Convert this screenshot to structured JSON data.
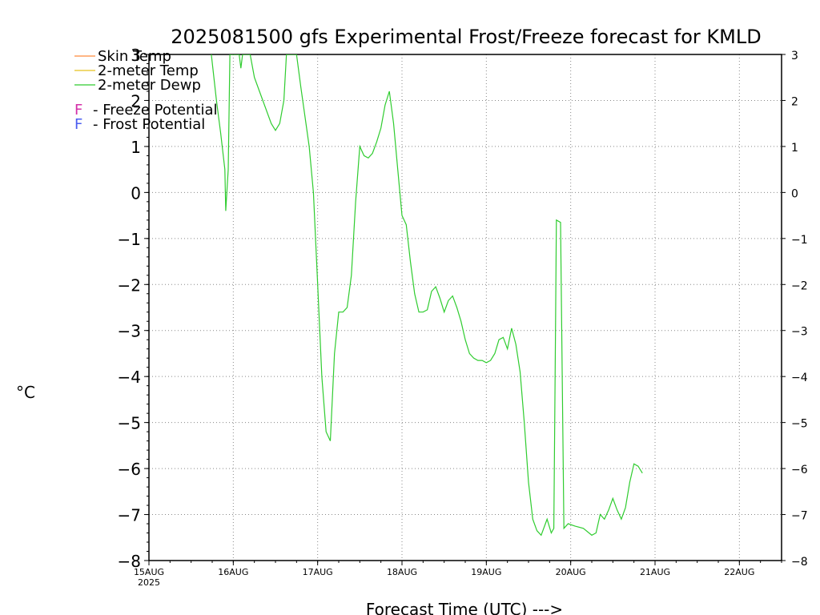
{
  "chart_data": {
    "type": "line",
    "title": "2025081500 gfs Experimental Frost/Freeze forecast for KMLD",
    "xlabel": "Forecast Time (UTC) --->",
    "ylabel": "°C",
    "ylim": [
      -8,
      3
    ],
    "xlim": [
      0,
      7.5
    ],
    "grid": true,
    "legend_position": "top-left",
    "yticks": [
      -8,
      -7,
      -6,
      -5,
      -4,
      -3,
      -2,
      -1,
      0,
      1,
      2,
      3
    ],
    "ytick_labels": [
      "−8",
      "−7",
      "−6",
      "−5",
      "−4",
      "−3",
      "−2",
      "−1",
      "0",
      "1",
      "2",
      "3"
    ],
    "xticks": [
      0,
      1,
      2,
      3,
      4,
      5,
      6,
      7
    ],
    "xtick_labels": [
      "15AUG",
      "16AUG",
      "17AUG",
      "18AUG",
      "19AUG",
      "20AUG",
      "21AUG",
      "22AUG"
    ],
    "xtick_sublabel": "2025",
    "legend": [
      {
        "name": "Skin Temp",
        "color": "#ff8a3c",
        "kind": "line"
      },
      {
        "name": "2-meter Temp",
        "color": "#e6c21e",
        "kind": "line"
      },
      {
        "name": "2-meter Dewp",
        "color": "#2fcc2f",
        "kind": "line"
      }
    ],
    "potential_legend": [
      {
        "symbol": "F",
        "symbol_color": "#d42fa8",
        "text": "- Freeze Potential"
      },
      {
        "symbol": "F",
        "symbol_color": "#4a5cf0",
        "text": "- Frost Potential"
      }
    ],
    "series": [
      {
        "name": "2-meter Dewp",
        "color": "#2fcc2f",
        "points": [
          [
            0.74,
            3.0
          ],
          [
            0.8,
            2.0
          ],
          [
            0.85,
            1.3
          ],
          [
            0.9,
            0.5
          ],
          [
            0.91,
            -0.4
          ],
          [
            0.94,
            0.5
          ],
          [
            0.96,
            3.0
          ],
          [
            1.07,
            3.0
          ],
          [
            1.09,
            2.7
          ],
          [
            1.11,
            3.0
          ],
          [
            1.2,
            3.0
          ],
          [
            1.25,
            2.5
          ],
          [
            1.35,
            2.0
          ],
          [
            1.45,
            1.5
          ],
          [
            1.5,
            1.35
          ],
          [
            1.55,
            1.5
          ],
          [
            1.6,
            2.0
          ],
          [
            1.63,
            3.0
          ],
          [
            1.75,
            3.0
          ],
          [
            1.8,
            2.3
          ],
          [
            1.9,
            1.0
          ],
          [
            1.95,
            0.0
          ],
          [
            2.0,
            -2.0
          ],
          [
            2.05,
            -4.0
          ],
          [
            2.1,
            -5.2
          ],
          [
            2.15,
            -5.4
          ],
          [
            2.2,
            -3.5
          ],
          [
            2.25,
            -2.6
          ],
          [
            2.3,
            -2.6
          ],
          [
            2.35,
            -2.5
          ],
          [
            2.4,
            -1.8
          ],
          [
            2.45,
            -0.2
          ],
          [
            2.5,
            1.0
          ],
          [
            2.55,
            0.8
          ],
          [
            2.6,
            0.75
          ],
          [
            2.65,
            0.85
          ],
          [
            2.7,
            1.1
          ],
          [
            2.75,
            1.4
          ],
          [
            2.8,
            1.9
          ],
          [
            2.85,
            2.2
          ],
          [
            2.9,
            1.5
          ],
          [
            2.95,
            0.5
          ],
          [
            3.0,
            -0.5
          ],
          [
            3.05,
            -0.7
          ],
          [
            3.1,
            -1.5
          ],
          [
            3.15,
            -2.2
          ],
          [
            3.2,
            -2.6
          ],
          [
            3.25,
            -2.6
          ],
          [
            3.3,
            -2.55
          ],
          [
            3.35,
            -2.15
          ],
          [
            3.4,
            -2.05
          ],
          [
            3.45,
            -2.3
          ],
          [
            3.5,
            -2.6
          ],
          [
            3.55,
            -2.35
          ],
          [
            3.6,
            -2.25
          ],
          [
            3.65,
            -2.5
          ],
          [
            3.7,
            -2.8
          ],
          [
            3.75,
            -3.2
          ],
          [
            3.8,
            -3.5
          ],
          [
            3.85,
            -3.6
          ],
          [
            3.9,
            -3.65
          ],
          [
            3.95,
            -3.65
          ],
          [
            4.0,
            -3.7
          ],
          [
            4.05,
            -3.65
          ],
          [
            4.1,
            -3.5
          ],
          [
            4.15,
            -3.2
          ],
          [
            4.2,
            -3.15
          ],
          [
            4.25,
            -3.4
          ],
          [
            4.3,
            -2.95
          ],
          [
            4.35,
            -3.3
          ],
          [
            4.4,
            -3.9
          ],
          [
            4.45,
            -5.0
          ],
          [
            4.5,
            -6.3
          ],
          [
            4.55,
            -7.1
          ],
          [
            4.6,
            -7.35
          ],
          [
            4.65,
            -7.45
          ],
          [
            4.7,
            -7.2
          ],
          [
            4.72,
            -7.1
          ],
          [
            4.77,
            -7.4
          ],
          [
            4.8,
            -7.3
          ],
          [
            4.82,
            -3.0
          ],
          [
            4.83,
            -0.6
          ],
          [
            4.88,
            -0.65
          ],
          [
            4.9,
            -4.0
          ],
          [
            4.92,
            -7.3
          ],
          [
            4.97,
            -7.2
          ],
          [
            5.05,
            -7.25
          ],
          [
            5.15,
            -7.3
          ],
          [
            5.25,
            -7.45
          ],
          [
            5.3,
            -7.4
          ],
          [
            5.35,
            -7.0
          ],
          [
            5.4,
            -7.1
          ],
          [
            5.45,
            -6.9
          ],
          [
            5.5,
            -6.65
          ],
          [
            5.55,
            -6.9
          ],
          [
            5.6,
            -7.1
          ],
          [
            5.65,
            -6.85
          ],
          [
            5.7,
            -6.3
          ],
          [
            5.75,
            -5.9
          ],
          [
            5.8,
            -5.95
          ],
          [
            5.85,
            -6.1
          ]
        ]
      }
    ]
  }
}
